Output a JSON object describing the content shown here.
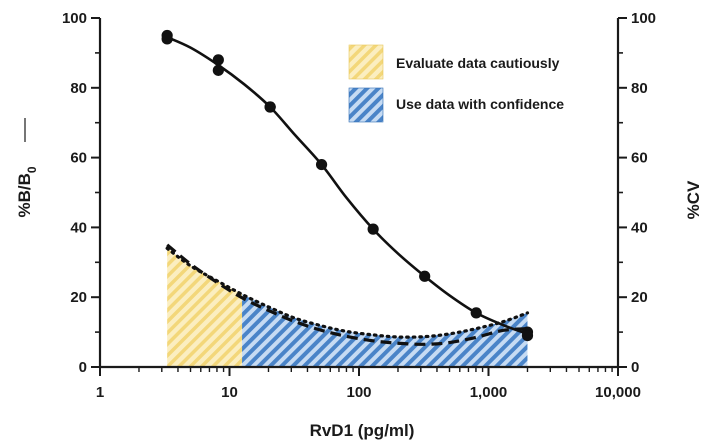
{
  "chart_data": {
    "type": "line",
    "xlabel": "RvD1 (pg/ml)",
    "ylabel_left_main": "%B/B",
    "ylabel_left_sub": "0",
    "ylabel_right": "%CV",
    "x_scale": "log",
    "xlim": [
      1,
      10000
    ],
    "ylim": [
      0,
      100
    ],
    "y2lim": [
      0,
      100
    ],
    "x_ticks": [
      1,
      10,
      100,
      1000,
      10000
    ],
    "x_tick_labels": [
      "1",
      "10",
      "100",
      "1,000",
      "10,000"
    ],
    "y_ticks": [
      0,
      20,
      40,
      60,
      80,
      100
    ],
    "y_tick_labels": [
      "0",
      "20",
      "40",
      "60",
      "80",
      "100"
    ],
    "grid": false,
    "legend_position": "top-right",
    "legend": [
      {
        "label": "Evaluate data cautiously",
        "color": "#f5df8a"
      },
      {
        "label": "Use data with confidence",
        "color": "#3f7fc4"
      }
    ],
    "standard_points": {
      "x": [
        3.3,
        3.3,
        8.2,
        8.2,
        20.6,
        20.6,
        51.4,
        128.6,
        321.5,
        803.8,
        2000,
        2000
      ],
      "y": [
        95,
        94,
        88,
        85,
        74.5,
        74.5,
        58,
        39.5,
        26,
        15.5,
        10,
        9
      ]
    },
    "fit_curve": {
      "x": [
        3.3,
        5,
        8.2,
        13,
        20.6,
        32,
        51.4,
        80,
        128.6,
        200,
        321.5,
        500,
        803.8,
        1300,
        2000
      ],
      "y": [
        94.5,
        91.5,
        86.5,
        81,
        74.5,
        66.5,
        58,
        48.5,
        39.5,
        32.5,
        26,
        20.5,
        15.5,
        12,
        9.5
      ]
    },
    "cv_dashed": {
      "x": [
        3.3,
        5,
        8.2,
        13,
        20.6,
        32,
        51.4,
        80,
        128.6,
        200,
        321.5,
        500,
        803.8,
        1300,
        2000
      ],
      "y": [
        35,
        29.5,
        24,
        19.5,
        16,
        13,
        10.5,
        8.8,
        7.5,
        6.8,
        6.5,
        7,
        8.5,
        10.5,
        11
      ]
    },
    "cv_dotted": {
      "x": [
        3.3,
        5,
        8.2,
        13,
        20.6,
        32,
        51.4,
        80,
        128.6,
        200,
        321.5,
        500,
        803.8,
        1300,
        2000
      ],
      "y": [
        34,
        29,
        24.5,
        20.5,
        17,
        14,
        11.8,
        10.2,
        9.2,
        8.6,
        8.7,
        9.5,
        11,
        13,
        15.5
      ]
    },
    "region_caution": {
      "x_start": 3.3,
      "x_end": 12.5,
      "color": "#f5df8a"
    },
    "region_confidence": {
      "x_start": 12.5,
      "x_end": 2000,
      "color": "#3f7fc4"
    }
  }
}
